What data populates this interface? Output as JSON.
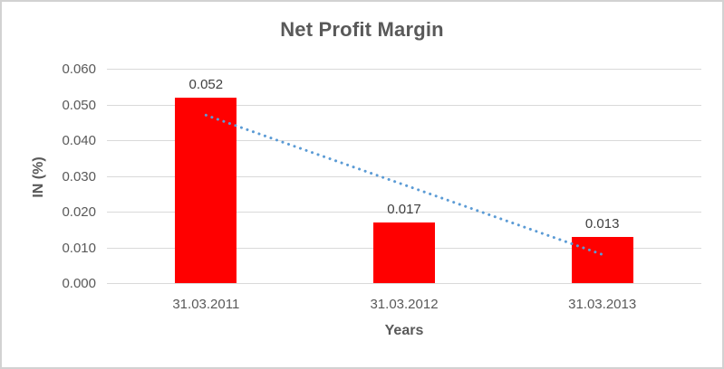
{
  "window": {
    "background": "#ffffff",
    "border_color": "#d2d2d2"
  },
  "chart_data": {
    "type": "bar",
    "title": "Net Profit Margin",
    "categories": [
      "31.03.2011",
      "31.03.2012",
      "31.03.2013"
    ],
    "values": [
      0.052,
      0.017,
      0.013
    ],
    "data_labels": [
      "0.052",
      "0.017",
      "0.013"
    ],
    "xlabel": "Years",
    "ylabel": "IN (%)",
    "ylim": [
      0,
      0.06
    ],
    "yticks": [
      {
        "value": 0.0,
        "label": "0.000"
      },
      {
        "value": 0.01,
        "label": "0.010"
      },
      {
        "value": 0.02,
        "label": "0.020"
      },
      {
        "value": 0.03,
        "label": "0.030"
      },
      {
        "value": 0.04,
        "label": "0.040"
      },
      {
        "value": 0.05,
        "label": "0.050"
      },
      {
        "value": 0.06,
        "label": "0.060"
      }
    ],
    "grid": true,
    "legend": "none",
    "bar_color": "#ff0000",
    "text_color": "#595959",
    "gridline_color": "#d9d9d9",
    "trendline": {
      "type": "linear",
      "style": "dotted",
      "color": "#5b9bd5",
      "start_value": 0.047,
      "end_value": 0.008
    }
  }
}
